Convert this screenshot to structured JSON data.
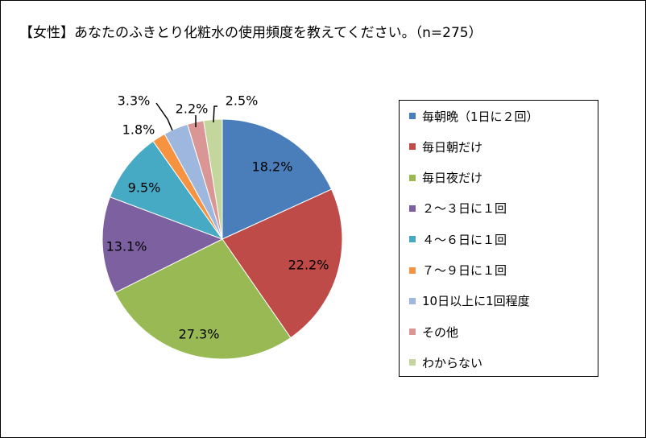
{
  "chart_data": {
    "type": "pie",
    "title": "【女性】あなたのふきとり化粧水の使用頻度を教えてください。（n=275）",
    "legend_position": "right",
    "slices": [
      {
        "label": "毎朝晩（1日に２回）",
        "value": 18.2,
        "value_label": "18.2%",
        "color": "#4a7ebb"
      },
      {
        "label": "毎日朝だけ",
        "value": 22.2,
        "value_label": "22.2%",
        "color": "#be4b48"
      },
      {
        "label": "毎日夜だけ",
        "value": 27.3,
        "value_label": "27.3%",
        "color": "#98b954"
      },
      {
        "label": "２～３日に１回",
        "value": 13.1,
        "value_label": "13.1%",
        "color": "#7d60a0"
      },
      {
        "label": "４～６日に１回",
        "value": 9.5,
        "value_label": "9.5%",
        "color": "#46aac5"
      },
      {
        "label": "７～９日に１回",
        "value": 1.8,
        "value_label": "1.8%",
        "color": "#f69240"
      },
      {
        "label": "10日以上に1回程度",
        "value": 3.3,
        "value_label": "3.3%",
        "color": "#9eb7de"
      },
      {
        "label": "その他",
        "value": 2.2,
        "value_label": "2.2%",
        "color": "#d99694"
      },
      {
        "label": "わからない",
        "value": 2.5,
        "value_label": "2.5%",
        "color": "#c3d69b"
      }
    ]
  }
}
